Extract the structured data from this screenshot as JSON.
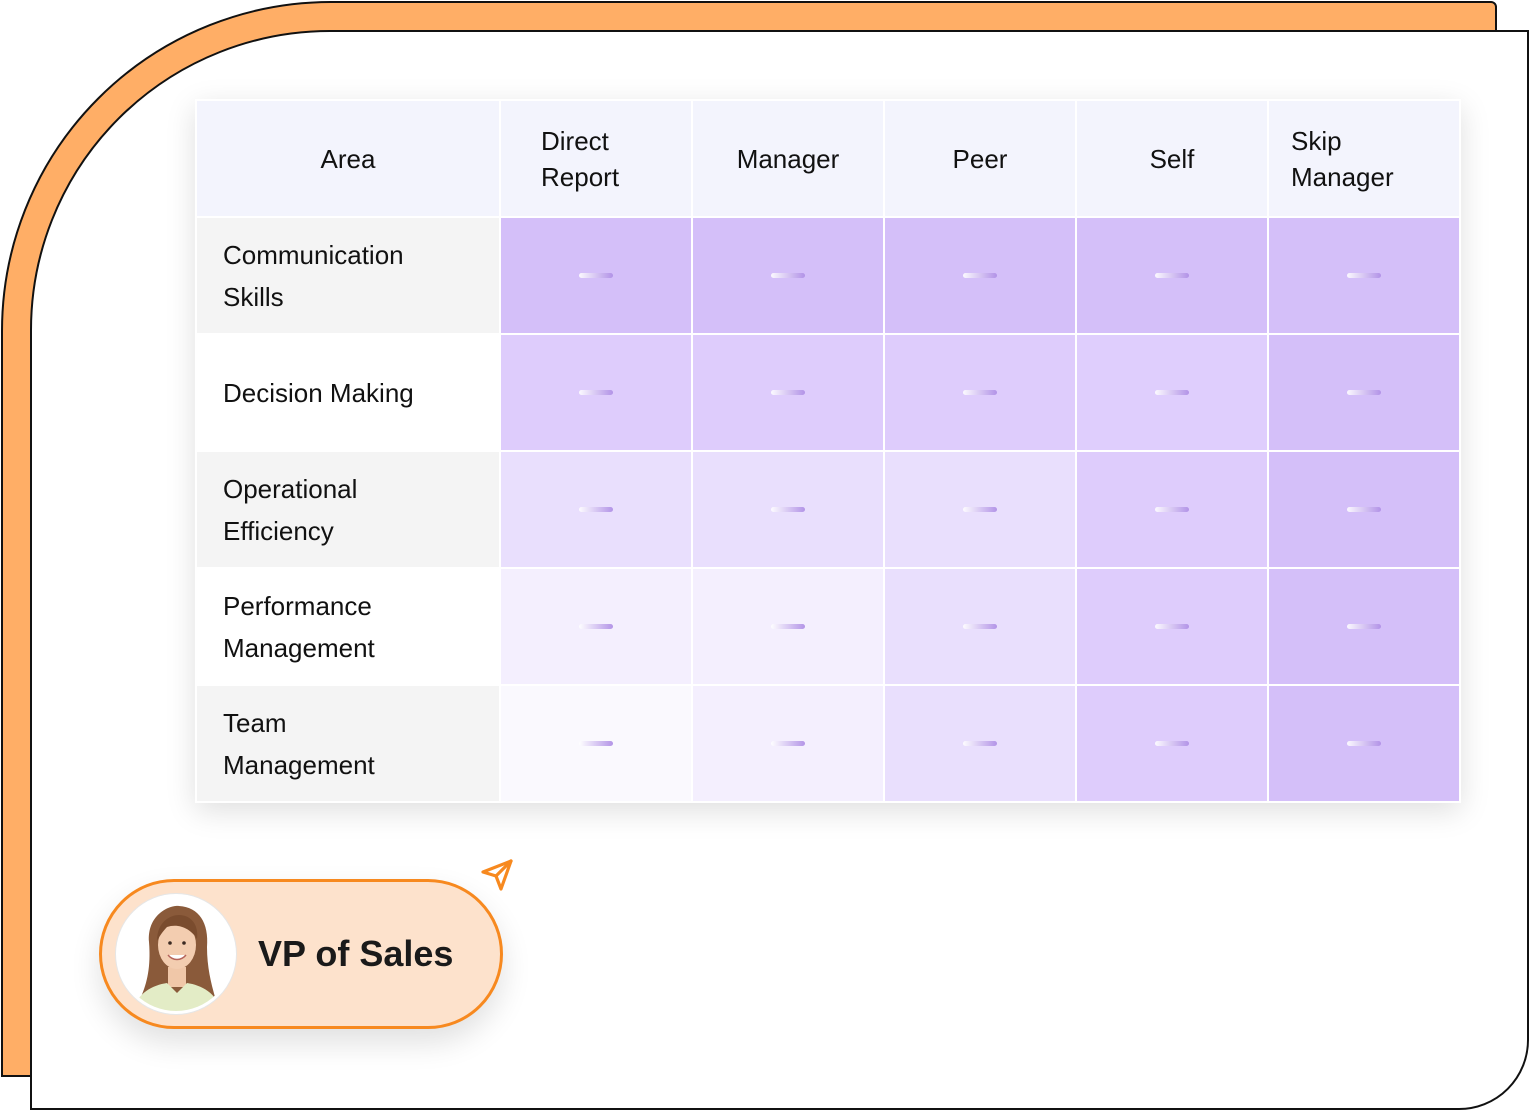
{
  "table": {
    "headers": [
      "Area",
      "Direct Report",
      "Manager",
      "Peer",
      "Self",
      "Skip Manager"
    ],
    "rows": [
      {
        "label": "Communication Skills",
        "level_colors": [
          "#D4BFF9",
          "#D4BFF9",
          "#D4BFF9",
          "#D4BFF9",
          "#D4BFF9"
        ]
      },
      {
        "label": "Decision Making",
        "level_colors": [
          "#DECCFC",
          "#DECCFC",
          "#DECCFC",
          "#DFCEFD",
          "#D4BFF9"
        ]
      },
      {
        "label": "Operational Efficiency",
        "level_colors": [
          "#E9DFFD",
          "#E9DFFD",
          "#E9DFFD",
          "#DECCFC",
          "#D4BFF9"
        ]
      },
      {
        "label": "Performance Management",
        "level_colors": [
          "#F4EFFE",
          "#F4EFFE",
          "#E9DFFD",
          "#DECCFC",
          "#D4BFF9"
        ]
      },
      {
        "label": "Team Management",
        "level_colors": [
          "#FAF9FE",
          "#F4EFFE",
          "#E9DFFD",
          "#DECCFC",
          "#D4BFF9"
        ]
      }
    ],
    "cell_value": "–"
  },
  "badge": {
    "title": "VP of Sales",
    "avatar_icon": "woman-avatar-icon",
    "pointer_icon": "send-arrow-icon"
  },
  "colors": {
    "frame_orange": "#FFAE66",
    "badge_border": "#F7891F",
    "badge_fill": "#FDE2CC",
    "header_fill": "#F3F4FD"
  }
}
